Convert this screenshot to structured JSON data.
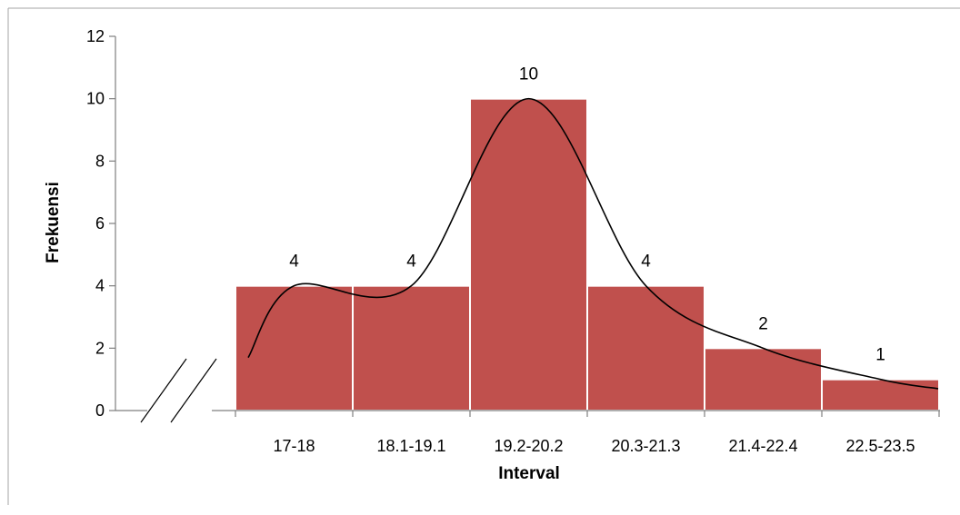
{
  "chart_data": {
    "type": "bar",
    "title": "",
    "xlabel": "Interval",
    "ylabel": "Frekuensi",
    "categories": [
      "17-18",
      "18.1-19.1",
      "19.2-20.2",
      "20.3-21.3",
      "21.4-22.4",
      "22.5-23.5"
    ],
    "values": [
      4,
      4,
      10,
      4,
      2,
      1
    ],
    "data_labels": [
      "4",
      "4",
      "10",
      "4",
      "2",
      "1"
    ],
    "ylim": [
      0,
      12
    ],
    "yticks": [
      0,
      2,
      4,
      6,
      8,
      10,
      12
    ],
    "ytick_labels": [
      "0",
      "2",
      "4",
      "6",
      "8",
      "10",
      "12"
    ],
    "grid": false,
    "legend": "none",
    "axis_break_on_x": true,
    "frequency_curve_overlay": true,
    "colors": {
      "bar_fill": "#c0504d",
      "bar_edge": "#ffffff",
      "axis": "#7f7f7f",
      "curve": "#000000",
      "frame": "#a6a6a6"
    }
  }
}
